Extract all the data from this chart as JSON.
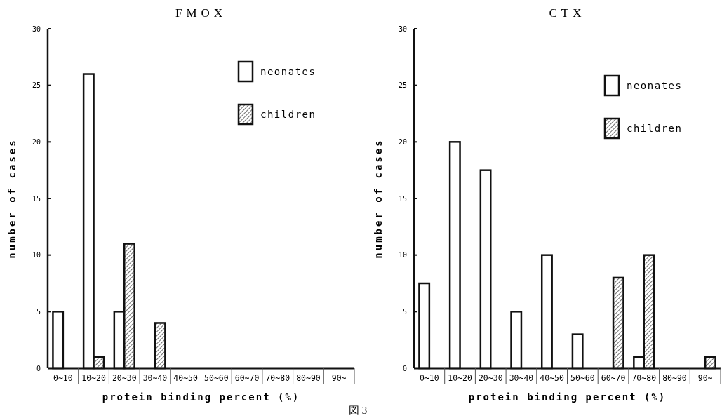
{
  "chart_data": [
    {
      "type": "bar",
      "title": "FMOX",
      "xlabel": "protein binding percent (%)",
      "ylabel": "number of cases",
      "categories": [
        "0~10",
        "10~20",
        "20~30",
        "30~40",
        "40~50",
        "50~60",
        "60~70",
        "70~80",
        "80~90",
        "90~"
      ],
      "series": [
        {
          "name": "neonates",
          "color": "#ffffff",
          "values": [
            5,
            26,
            5,
            0,
            0,
            0,
            0,
            0,
            0,
            0
          ]
        },
        {
          "name": "children",
          "color": "#111111",
          "values": [
            0,
            1,
            11,
            4,
            0,
            0,
            0,
            0,
            0,
            0
          ]
        }
      ],
      "ylim": [
        0,
        30
      ],
      "yticks": [
        0,
        5,
        10,
        15,
        20,
        25,
        30
      ],
      "legend": "top right",
      "grid": false,
      "annotations": [
        "図 3"
      ]
    },
    {
      "type": "bar",
      "title": "CTX",
      "xlabel": "protein binding percent (%)",
      "ylabel": "number of cases",
      "categories": [
        "0~10",
        "10~20",
        "20~30",
        "30~40",
        "40~50",
        "50~60",
        "60~70",
        "70~80",
        "80~90",
        "90~"
      ],
      "series": [
        {
          "name": "neonates",
          "color": "#ffffff",
          "values": [
            7.5,
            20,
            17.5,
            5,
            10,
            3,
            0,
            1,
            0,
            0
          ]
        },
        {
          "name": "children",
          "color": "#111111",
          "values": [
            0,
            0,
            0,
            0,
            0,
            0,
            8,
            10,
            0,
            1
          ]
        }
      ],
      "ylim": [
        0,
        30
      ],
      "yticks": [
        0,
        5,
        10,
        15,
        20,
        25,
        30
      ],
      "legend": "top right",
      "grid": false
    }
  ]
}
